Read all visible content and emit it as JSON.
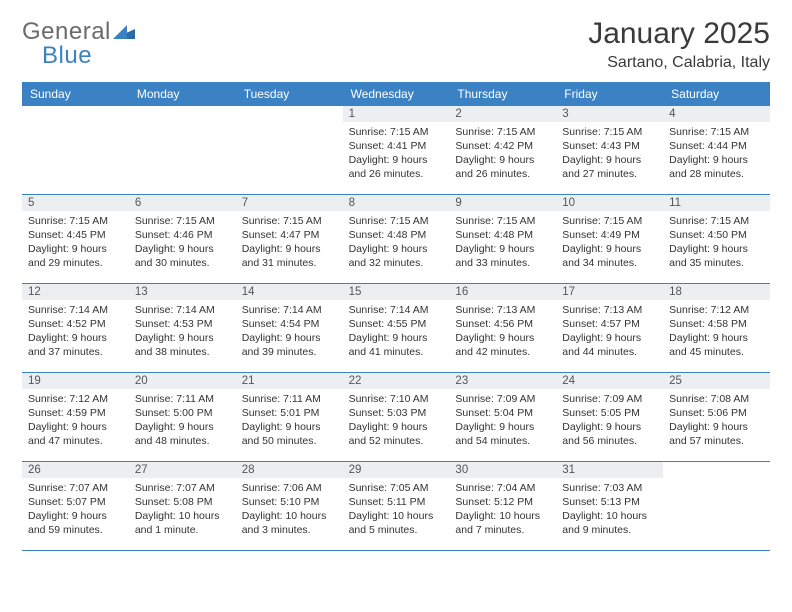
{
  "brand": {
    "word1": "General",
    "word2": "Blue"
  },
  "title": "January 2025",
  "location": "Sartano, Calabria, Italy",
  "colors": {
    "accent": "#3b82c4",
    "header_text": "#ffffff",
    "daynum_bg": "#eceff1",
    "body_text": "#333333",
    "logo_gray": "#6b6b6b",
    "background": "#ffffff",
    "rule": "#3b82c4"
  },
  "day_names": [
    "Sunday",
    "Monday",
    "Tuesday",
    "Wednesday",
    "Thursday",
    "Friday",
    "Saturday"
  ],
  "start_day_index": 3,
  "days": [
    {
      "n": "1",
      "sunrise": "7:15 AM",
      "sunset": "4:41 PM",
      "daylight": "9 hours and 26 minutes."
    },
    {
      "n": "2",
      "sunrise": "7:15 AM",
      "sunset": "4:42 PM",
      "daylight": "9 hours and 26 minutes."
    },
    {
      "n": "3",
      "sunrise": "7:15 AM",
      "sunset": "4:43 PM",
      "daylight": "9 hours and 27 minutes."
    },
    {
      "n": "4",
      "sunrise": "7:15 AM",
      "sunset": "4:44 PM",
      "daylight": "9 hours and 28 minutes."
    },
    {
      "n": "5",
      "sunrise": "7:15 AM",
      "sunset": "4:45 PM",
      "daylight": "9 hours and 29 minutes."
    },
    {
      "n": "6",
      "sunrise": "7:15 AM",
      "sunset": "4:46 PM",
      "daylight": "9 hours and 30 minutes."
    },
    {
      "n": "7",
      "sunrise": "7:15 AM",
      "sunset": "4:47 PM",
      "daylight": "9 hours and 31 minutes."
    },
    {
      "n": "8",
      "sunrise": "7:15 AM",
      "sunset": "4:48 PM",
      "daylight": "9 hours and 32 minutes."
    },
    {
      "n": "9",
      "sunrise": "7:15 AM",
      "sunset": "4:48 PM",
      "daylight": "9 hours and 33 minutes."
    },
    {
      "n": "10",
      "sunrise": "7:15 AM",
      "sunset": "4:49 PM",
      "daylight": "9 hours and 34 minutes."
    },
    {
      "n": "11",
      "sunrise": "7:15 AM",
      "sunset": "4:50 PM",
      "daylight": "9 hours and 35 minutes."
    },
    {
      "n": "12",
      "sunrise": "7:14 AM",
      "sunset": "4:52 PM",
      "daylight": "9 hours and 37 minutes."
    },
    {
      "n": "13",
      "sunrise": "7:14 AM",
      "sunset": "4:53 PM",
      "daylight": "9 hours and 38 minutes."
    },
    {
      "n": "14",
      "sunrise": "7:14 AM",
      "sunset": "4:54 PM",
      "daylight": "9 hours and 39 minutes."
    },
    {
      "n": "15",
      "sunrise": "7:14 AM",
      "sunset": "4:55 PM",
      "daylight": "9 hours and 41 minutes."
    },
    {
      "n": "16",
      "sunrise": "7:13 AM",
      "sunset": "4:56 PM",
      "daylight": "9 hours and 42 minutes."
    },
    {
      "n": "17",
      "sunrise": "7:13 AM",
      "sunset": "4:57 PM",
      "daylight": "9 hours and 44 minutes."
    },
    {
      "n": "18",
      "sunrise": "7:12 AM",
      "sunset": "4:58 PM",
      "daylight": "9 hours and 45 minutes."
    },
    {
      "n": "19",
      "sunrise": "7:12 AM",
      "sunset": "4:59 PM",
      "daylight": "9 hours and 47 minutes."
    },
    {
      "n": "20",
      "sunrise": "7:11 AM",
      "sunset": "5:00 PM",
      "daylight": "9 hours and 48 minutes."
    },
    {
      "n": "21",
      "sunrise": "7:11 AM",
      "sunset": "5:01 PM",
      "daylight": "9 hours and 50 minutes."
    },
    {
      "n": "22",
      "sunrise": "7:10 AM",
      "sunset": "5:03 PM",
      "daylight": "9 hours and 52 minutes."
    },
    {
      "n": "23",
      "sunrise": "7:09 AM",
      "sunset": "5:04 PM",
      "daylight": "9 hours and 54 minutes."
    },
    {
      "n": "24",
      "sunrise": "7:09 AM",
      "sunset": "5:05 PM",
      "daylight": "9 hours and 56 minutes."
    },
    {
      "n": "25",
      "sunrise": "7:08 AM",
      "sunset": "5:06 PM",
      "daylight": "9 hours and 57 minutes."
    },
    {
      "n": "26",
      "sunrise": "7:07 AM",
      "sunset": "5:07 PM",
      "daylight": "9 hours and 59 minutes."
    },
    {
      "n": "27",
      "sunrise": "7:07 AM",
      "sunset": "5:08 PM",
      "daylight": "10 hours and 1 minute."
    },
    {
      "n": "28",
      "sunrise": "7:06 AM",
      "sunset": "5:10 PM",
      "daylight": "10 hours and 3 minutes."
    },
    {
      "n": "29",
      "sunrise": "7:05 AM",
      "sunset": "5:11 PM",
      "daylight": "10 hours and 5 minutes."
    },
    {
      "n": "30",
      "sunrise": "7:04 AM",
      "sunset": "5:12 PM",
      "daylight": "10 hours and 7 minutes."
    },
    {
      "n": "31",
      "sunrise": "7:03 AM",
      "sunset": "5:13 PM",
      "daylight": "10 hours and 9 minutes."
    }
  ],
  "labels": {
    "sunrise": "Sunrise:",
    "sunset": "Sunset:",
    "daylight": "Daylight:"
  }
}
